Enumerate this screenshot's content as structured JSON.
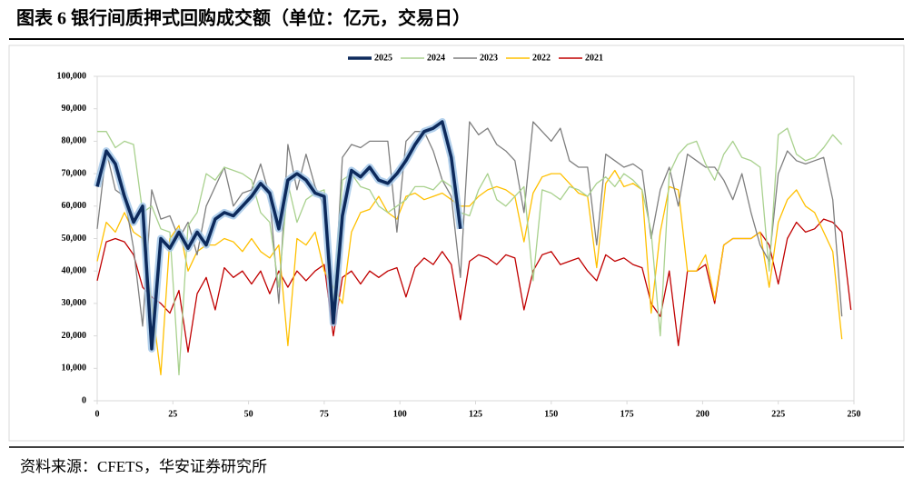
{
  "chart_data": {
    "type": "line",
    "title": "图表 6 银行间质押式回购成交额（单位：亿元，交易日）",
    "source": "资料来源：CFETS，华安证券研究所",
    "x": [
      0,
      3,
      6,
      9,
      12,
      15,
      18,
      21,
      24,
      27,
      30,
      33,
      36,
      39,
      42,
      45,
      48,
      51,
      54,
      57,
      60,
      63,
      66,
      69,
      72,
      75,
      78,
      81,
      84,
      87,
      90,
      93,
      96,
      99,
      102,
      105,
      108,
      111,
      114,
      117,
      120,
      123,
      126,
      129,
      132,
      135,
      138,
      141,
      144,
      147,
      150,
      153,
      156,
      159,
      162,
      165,
      168,
      171,
      174,
      177,
      180,
      183,
      186,
      189,
      192,
      195,
      198,
      201,
      204,
      207,
      210,
      213,
      216,
      219,
      222,
      225,
      228,
      231,
      234,
      237,
      240,
      243,
      246,
      249
    ],
    "xlim": [
      0,
      250
    ],
    "xticks": [
      0,
      25,
      50,
      75,
      100,
      125,
      150,
      175,
      200,
      225,
      250
    ],
    "ylim": [
      0,
      100000
    ],
    "yticks": [
      0,
      {
        "value": 10000,
        "label": "10,000"
      },
      {
        "value": 20000,
        "label": "20,000"
      },
      {
        "value": 30000,
        "label": "30,000"
      },
      {
        "value": 40000,
        "label": "40,000"
      },
      {
        "value": 50000,
        "label": "50,000"
      },
      {
        "value": 60000,
        "label": "60,000"
      },
      {
        "value": 70000,
        "label": "70,000"
      },
      {
        "value": 80000,
        "label": "80,000"
      },
      {
        "value": 90000,
        "label": "90,000"
      },
      {
        "value": 100000,
        "label": "100,000"
      }
    ],
    "grid": false,
    "legend": "top",
    "series": [
      {
        "name": "2025",
        "color": "#0d2a5c",
        "values": [
          66000,
          77000,
          73000,
          63000,
          55000,
          60000,
          16000,
          50000,
          47000,
          52000,
          47000,
          52000,
          48000,
          56000,
          58000,
          57000,
          60000,
          63000,
          67000,
          64000,
          53000,
          68000,
          70000,
          68000,
          64000,
          63000,
          24000,
          57000,
          71000,
          69000,
          72000,
          68000,
          67000,
          70000,
          74000,
          79000,
          83000,
          84000,
          86000,
          75000,
          53000,
          null,
          null,
          null,
          null,
          null,
          null,
          null,
          null,
          null,
          null,
          null,
          null,
          null,
          null,
          null,
          null,
          null,
          null,
          null,
          null,
          null,
          null,
          null,
          null,
          null,
          null,
          null,
          null,
          null,
          null,
          null,
          null,
          null,
          null,
          null,
          null,
          null,
          null,
          null,
          null,
          null,
          null,
          null
        ]
      },
      {
        "name": "2024",
        "color": "#a9d18e",
        "values": [
          83000,
          83000,
          78000,
          80000,
          79000,
          58000,
          60000,
          53000,
          52000,
          8000,
          54000,
          58000,
          70000,
          68000,
          72000,
          71000,
          70000,
          68000,
          58000,
          55000,
          35000,
          67000,
          55000,
          62000,
          64000,
          65000,
          30000,
          68000,
          70000,
          66000,
          65000,
          60000,
          58000,
          60000,
          62000,
          66000,
          66000,
          65000,
          68000,
          66000,
          58000,
          57000,
          65000,
          70000,
          62000,
          60000,
          63000,
          66000,
          37000,
          65000,
          64000,
          62000,
          66000,
          65000,
          63000,
          67000,
          69000,
          66000,
          70000,
          68000,
          65000,
          52000,
          20000,
          70000,
          76000,
          79000,
          80000,
          73000,
          68000,
          76000,
          80000,
          75000,
          74000,
          72000,
          40000,
          82000,
          84000,
          76000,
          74000,
          75000,
          78000,
          82000,
          79000,
          null
        ]
      },
      {
        "name": "2023",
        "color": "#7f7f7f",
        "values": [
          53000,
          77000,
          65000,
          63000,
          47000,
          23000,
          65000,
          56000,
          57000,
          50000,
          55000,
          45000,
          60000,
          66000,
          72000,
          60000,
          64000,
          65000,
          73000,
          63000,
          30000,
          79000,
          65000,
          76000,
          66000,
          60000,
          25000,
          75000,
          79000,
          78000,
          80000,
          80000,
          80000,
          52000,
          80000,
          83000,
          83000,
          77000,
          68000,
          63000,
          38000,
          86000,
          82000,
          84000,
          79000,
          77000,
          74000,
          58000,
          86000,
          83000,
          80000,
          84000,
          74000,
          72000,
          72000,
          48000,
          76000,
          74000,
          72000,
          73000,
          71000,
          50000,
          65000,
          72000,
          60000,
          76000,
          74000,
          72000,
          72000,
          68000,
          62000,
          70000,
          58000,
          48000,
          43000,
          70000,
          77000,
          74000,
          73000,
          74000,
          75000,
          62000,
          26000,
          null
        ]
      },
      {
        "name": "2022",
        "color": "#ffc000",
        "values": [
          43000,
          55000,
          52000,
          58000,
          52000,
          50000,
          30000,
          8000,
          50000,
          54000,
          40000,
          46000,
          48000,
          48000,
          50000,
          49000,
          46000,
          50000,
          46000,
          44000,
          48000,
          17000,
          50000,
          48000,
          52000,
          40000,
          35000,
          30000,
          52000,
          58000,
          59000,
          63000,
          58000,
          56000,
          63000,
          64000,
          62000,
          63000,
          64000,
          62000,
          60000,
          60000,
          63000,
          65000,
          66000,
          65000,
          63000,
          49000,
          64000,
          69000,
          70000,
          70000,
          67000,
          64000,
          63000,
          41000,
          67000,
          71000,
          66000,
          67000,
          65000,
          27000,
          52000,
          66000,
          65000,
          40000,
          40000,
          45000,
          31000,
          48000,
          50000,
          50000,
          50000,
          52000,
          35000,
          55000,
          62000,
          65000,
          60000,
          58000,
          52000,
          46000,
          19000,
          null
        ]
      },
      {
        "name": "2021",
        "color": "#c00000",
        "values": [
          37000,
          49000,
          50000,
          49000,
          45000,
          35000,
          32000,
          30000,
          27000,
          34000,
          15000,
          33000,
          38000,
          28000,
          41000,
          38000,
          40000,
          36000,
          40000,
          33000,
          40000,
          35000,
          40000,
          37000,
          40000,
          42000,
          20000,
          38000,
          40000,
          36000,
          40000,
          38000,
          40000,
          41000,
          32000,
          41000,
          44000,
          42000,
          46000,
          42000,
          25000,
          43000,
          45000,
          44000,
          42000,
          45000,
          44000,
          28000,
          40000,
          45000,
          46000,
          42000,
          43000,
          44000,
          40000,
          37000,
          45000,
          43000,
          44000,
          42000,
          41000,
          30000,
          26000,
          40000,
          17000,
          40000,
          40000,
          42000,
          30000,
          48000,
          50000,
          50000,
          50000,
          52000,
          48000,
          36000,
          50000,
          55000,
          52000,
          53000,
          56000,
          55000,
          52000,
          28000
        ]
      }
    ]
  }
}
